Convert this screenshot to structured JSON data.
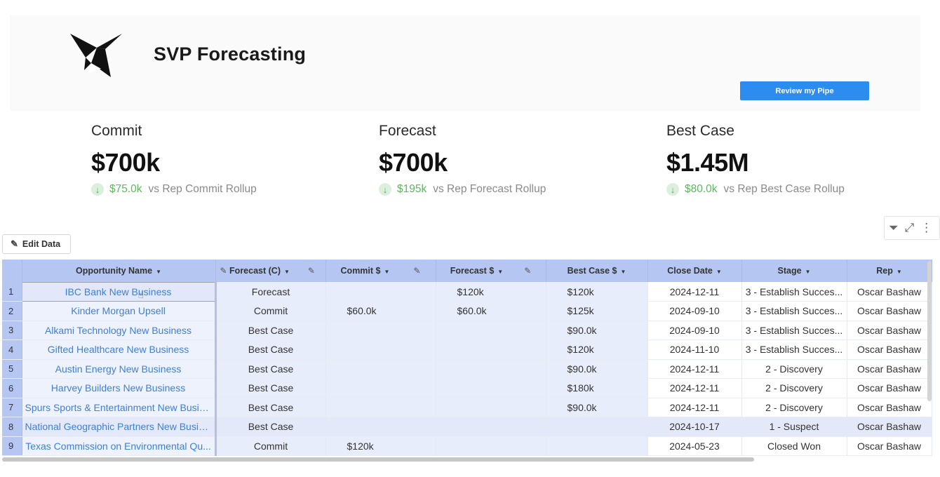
{
  "app": {
    "title": "SVP Forecasting",
    "review_button": "Review my Pipe"
  },
  "kpis": [
    {
      "label": "Commit",
      "value": "$700k",
      "delta": "$75.0k",
      "compare": "vs Rep Commit Rollup"
    },
    {
      "label": "Forecast",
      "value": "$700k",
      "delta": "$195k",
      "compare": "vs Rep Forecast Rollup"
    },
    {
      "label": "Best Case",
      "value": "$1.45M",
      "delta": "$80.0k",
      "compare": "vs Rep Best Case Rollup"
    }
  ],
  "toolbar": {
    "edit_data": "Edit Data"
  },
  "table": {
    "columns": [
      "Opportunity Name",
      "Forecast (C)",
      "Commit $",
      "Forecast $",
      "Best Case $",
      "Close Date",
      "Stage",
      "Rep"
    ],
    "rows": [
      {
        "num": "1",
        "opportunity": "IBC Bank New Business",
        "forecast_c": "Forecast",
        "commit": "",
        "forecast": "$120k",
        "best_case": "$120k",
        "close_date": "2024-12-11",
        "stage": "3 - Establish Succes...",
        "rep": "Oscar Bashaw"
      },
      {
        "num": "2",
        "opportunity": "Kinder Morgan Upsell",
        "forecast_c": "Commit",
        "commit": "$60.0k",
        "forecast": "$60.0k",
        "best_case": "$125k",
        "close_date": "2024-09-10",
        "stage": "3 - Establish Succes...",
        "rep": "Oscar Bashaw"
      },
      {
        "num": "3",
        "opportunity": "Alkami Technology New Business",
        "forecast_c": "Best Case",
        "commit": "",
        "forecast": "",
        "best_case": "$90.0k",
        "close_date": "2024-09-10",
        "stage": "3 - Establish Succes...",
        "rep": "Oscar Bashaw"
      },
      {
        "num": "4",
        "opportunity": "Gifted Healthcare New Business",
        "forecast_c": "Best Case",
        "commit": "",
        "forecast": "",
        "best_case": "$120k",
        "close_date": "2024-11-10",
        "stage": "3 - Establish Succes...",
        "rep": "Oscar Bashaw"
      },
      {
        "num": "5",
        "opportunity": "Austin Energy New Business",
        "forecast_c": "Best Case",
        "commit": "",
        "forecast": "",
        "best_case": "$90.0k",
        "close_date": "2024-12-11",
        "stage": "2 - Discovery",
        "rep": "Oscar Bashaw"
      },
      {
        "num": "6",
        "opportunity": "Harvey Builders New Business",
        "forecast_c": "Best Case",
        "commit": "",
        "forecast": "",
        "best_case": "$180k",
        "close_date": "2024-12-11",
        "stage": "2 - Discovery",
        "rep": "Oscar Bashaw"
      },
      {
        "num": "7",
        "opportunity": "Spurs Sports & Entertainment New Busin...",
        "forecast_c": "Best Case",
        "commit": "",
        "forecast": "",
        "best_case": "$90.0k",
        "close_date": "2024-12-11",
        "stage": "2 - Discovery",
        "rep": "Oscar Bashaw"
      },
      {
        "num": "8",
        "opportunity": "National Geographic Partners New Busin...",
        "forecast_c": "Best Case",
        "commit": "",
        "forecast": "",
        "best_case": "",
        "close_date": "2024-10-17",
        "stage": "1 - Suspect",
        "rep": "Oscar Bashaw"
      },
      {
        "num": "9",
        "opportunity": "Texas Commission on Environmental Qu...",
        "forecast_c": "Commit",
        "commit": "$120k",
        "forecast": "",
        "best_case": "",
        "close_date": "2024-05-23",
        "stage": "Closed Won",
        "rep": "Oscar Bashaw"
      }
    ]
  }
}
